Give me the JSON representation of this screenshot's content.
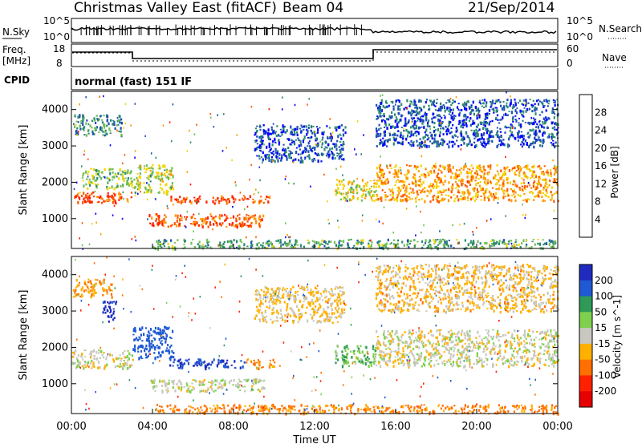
{
  "header": {
    "title": "Christmas Valley East (fitACF)",
    "beam": "Beam 04",
    "date": "21/Sep/2014"
  },
  "labels": {
    "nsky": "N.Sky",
    "nsearch": "N.Search",
    "freq": "Freq.",
    "freq_unit": "[MHz]",
    "nave": "Nave",
    "cpid": "CPID",
    "cpid_value": "normal (fast) 151 IF",
    "nsky_tick_hi": "10^5",
    "nsky_tick_lo": "10^0",
    "freq_ticks": [
      "18",
      "8"
    ],
    "nave_ticks": [
      "60",
      "0"
    ],
    "power_label": "Power [dB]",
    "velocity_label": "Velocity [m s^-1]"
  },
  "chart_data": [
    {
      "type": "heatmap",
      "panel": "power",
      "xlabel": "Time UT",
      "ylabel": "Slant Range [km]",
      "xlim": [
        0,
        24
      ],
      "ylim": [
        180,
        4500
      ],
      "x_ticks": [
        "00:00",
        "04:00",
        "08:00",
        "12:00",
        "16:00",
        "20:00",
        "00:00"
      ],
      "y_ticks": [
        1000,
        2000,
        3000,
        4000
      ],
      "colorbar_ticks": [
        "4",
        "8",
        "12",
        "16",
        "20",
        "24",
        "28"
      ],
      "colorbar_colors": [
        "#0000ff",
        "#1e50b4",
        "#2b8a6e",
        "#6fbf57",
        "#f3d400",
        "#ff9a00",
        "#ff5a00",
        "#ff1e00"
      ],
      "echo_bands": [
        {
          "t0": 0.0,
          "t1": 3.0,
          "r0": 1450,
          "r1": 1750,
          "dB": 27
        },
        {
          "t0": 0.5,
          "t1": 3.0,
          "r0": 1850,
          "r1": 2400,
          "dB": 14
        },
        {
          "t0": 0.1,
          "t1": 2.5,
          "r0": 3300,
          "r1": 3900,
          "dB": 10
        },
        {
          "t0": 3.0,
          "t1": 5.0,
          "r0": 1700,
          "r1": 2500,
          "dB": 16
        },
        {
          "t0": 4.8,
          "t1": 9.8,
          "r0": 1450,
          "r1": 1650,
          "dB": 28
        },
        {
          "t0": 3.8,
          "t1": 9.5,
          "r0": 800,
          "r1": 1150,
          "dB": 26
        },
        {
          "t0": 9.0,
          "t1": 13.5,
          "r0": 2600,
          "r1": 3600,
          "dB": 6
        },
        {
          "t0": 13.0,
          "t1": 15.0,
          "r0": 1500,
          "r1": 2100,
          "dB": 18
        },
        {
          "t0": 15.0,
          "t1": 24.0,
          "r0": 1500,
          "r1": 2500,
          "dB": 22
        },
        {
          "t0": 15.0,
          "t1": 24.0,
          "r0": 3000,
          "r1": 4300,
          "dB": 6
        },
        {
          "t0": 4.0,
          "t1": 24.0,
          "r0": 200,
          "r1": 450,
          "dB": 12
        }
      ]
    },
    {
      "type": "heatmap",
      "panel": "velocity",
      "xlabel": "Time UT",
      "ylabel": "Slant Range [km]",
      "xlim": [
        0,
        24
      ],
      "ylim": [
        180,
        4500
      ],
      "x_ticks": [
        "00:00",
        "04:00",
        "08:00",
        "12:00",
        "16:00",
        "20:00",
        "00:00"
      ],
      "y_ticks": [
        1000,
        2000,
        3000,
        4000
      ],
      "colorbar_ticks": [
        "200",
        "100",
        "50",
        "15",
        "-15",
        "-50",
        "-100",
        "-200"
      ],
      "colorbar_colors": [
        "#1f2bbf",
        "#1f59d4",
        "#2f9a57",
        "#7fd04f",
        "#c8c8c0",
        "#ffb000",
        "#ff7000",
        "#ff2000",
        "#e60000"
      ],
      "echo_bands": [
        {
          "t0": 0.0,
          "t1": 3.0,
          "r0": 1450,
          "r1": 1950,
          "v": 0
        },
        {
          "t0": 0.0,
          "t1": 2.0,
          "r0": 3400,
          "r1": 3900,
          "v": -40
        },
        {
          "t0": 1.5,
          "t1": 2.2,
          "r0": 2700,
          "r1": 3300,
          "v": 220
        },
        {
          "t0": 3.0,
          "t1": 5.0,
          "r0": 1700,
          "r1": 2600,
          "v": 150
        },
        {
          "t0": 4.8,
          "t1": 8.5,
          "r0": 1450,
          "r1": 1700,
          "v": 200
        },
        {
          "t0": 8.5,
          "t1": 10.0,
          "r0": 1450,
          "r1": 1700,
          "v": -60
        },
        {
          "t0": 3.8,
          "t1": 9.5,
          "r0": 800,
          "r1": 1150,
          "v": 5
        },
        {
          "t0": 9.0,
          "t1": 13.5,
          "r0": 2700,
          "r1": 3700,
          "v": -20
        },
        {
          "t0": 13.0,
          "t1": 15.0,
          "r0": 1500,
          "r1": 2100,
          "v": 40
        },
        {
          "t0": 15.0,
          "t1": 24.0,
          "r0": 1500,
          "r1": 2500,
          "v": 0
        },
        {
          "t0": 15.0,
          "t1": 24.0,
          "r0": 3000,
          "r1": 4300,
          "v": -25
        },
        {
          "t0": 4.0,
          "t1": 24.0,
          "r0": 200,
          "r1": 450,
          "v": -60
        }
      ]
    }
  ]
}
